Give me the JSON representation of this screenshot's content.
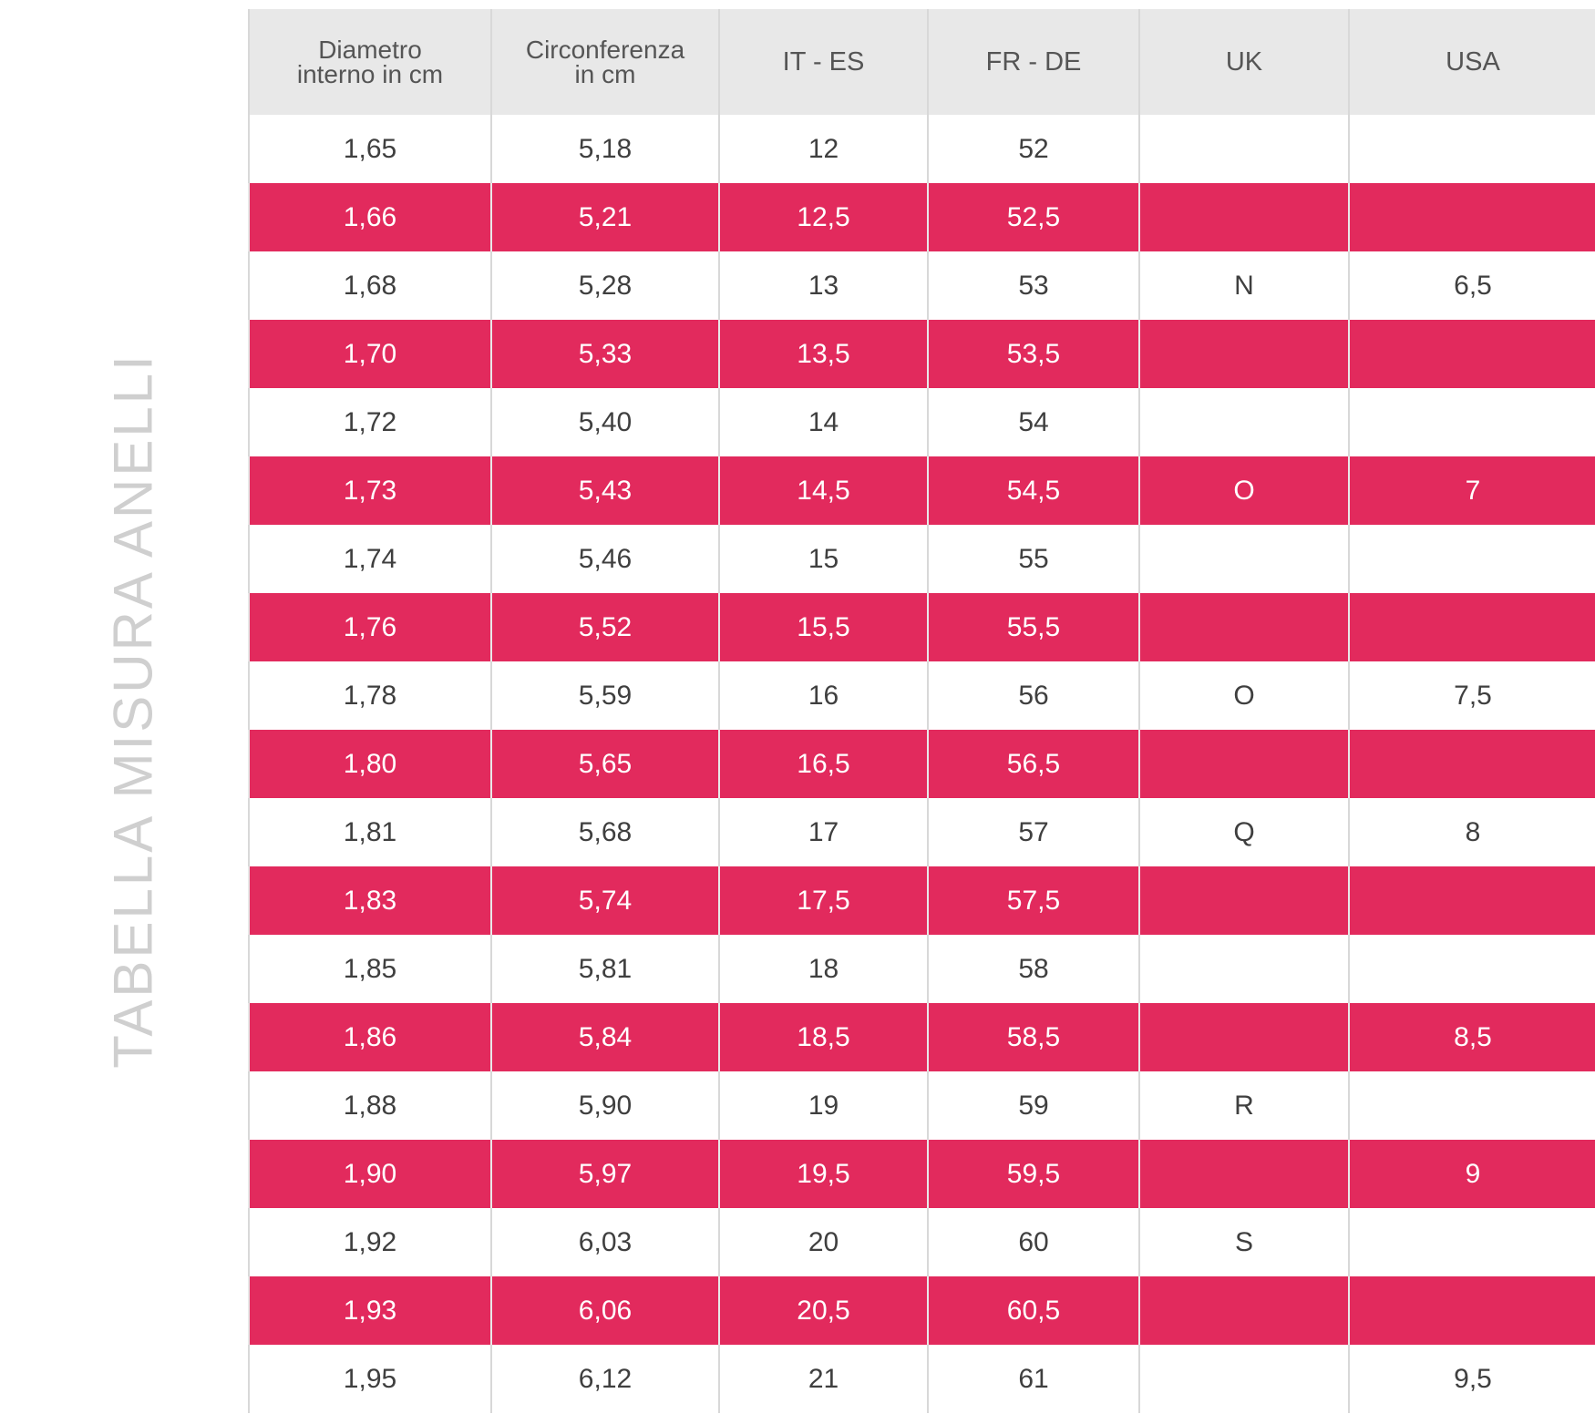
{
  "side_title": "TABELLA MISURA ANELLI",
  "columns": [
    {
      "line1": "Diametro",
      "line2": "interno in cm"
    },
    {
      "line1": "Circonferenza",
      "line2": "in cm"
    },
    {
      "line1": "IT - ES",
      "line2": ""
    },
    {
      "line1": "FR - DE",
      "line2": ""
    },
    {
      "line1": "UK",
      "line2": ""
    },
    {
      "line1": "USA",
      "line2": ""
    }
  ],
  "rows": [
    [
      "1,65",
      "5,18",
      "12",
      "52",
      "",
      ""
    ],
    [
      "1,66",
      "5,21",
      "12,5",
      "52,5",
      "",
      ""
    ],
    [
      "1,68",
      "5,28",
      "13",
      "53",
      "N",
      "6,5"
    ],
    [
      "1,70",
      "5,33",
      "13,5",
      "53,5",
      "",
      ""
    ],
    [
      "1,72",
      "5,40",
      "14",
      "54",
      "",
      ""
    ],
    [
      "1,73",
      "5,43",
      "14,5",
      "54,5",
      "O",
      "7"
    ],
    [
      "1,74",
      "5,46",
      "15",
      "55",
      "",
      ""
    ],
    [
      "1,76",
      "5,52",
      "15,5",
      "55,5",
      "",
      ""
    ],
    [
      "1,78",
      "5,59",
      "16",
      "56",
      "O",
      "7,5"
    ],
    [
      "1,80",
      "5,65",
      "16,5",
      "56,5",
      "",
      ""
    ],
    [
      "1,81",
      "5,68",
      "17",
      "57",
      "Q",
      "8"
    ],
    [
      "1,83",
      "5,74",
      "17,5",
      "57,5",
      "",
      ""
    ],
    [
      "1,85",
      "5,81",
      "18",
      "58",
      "",
      ""
    ],
    [
      "1,86",
      "5,84",
      "18,5",
      "58,5",
      "",
      "8,5"
    ],
    [
      "1,88",
      "5,90",
      "19",
      "59",
      "R",
      ""
    ],
    [
      "1,90",
      "5,97",
      "19,5",
      "59,5",
      "",
      "9"
    ],
    [
      "1,92",
      "6,03",
      "20",
      "60",
      "S",
      ""
    ],
    [
      "1,93",
      "6,06",
      "20,5",
      "60,5",
      "",
      ""
    ],
    [
      "1,95",
      "6,12",
      "21",
      "61",
      "",
      "9,5"
    ]
  ],
  "colors": {
    "accent_row": "#e22a5d",
    "header_bg": "#e8e8e8",
    "side_title": "#cfcfcf"
  }
}
